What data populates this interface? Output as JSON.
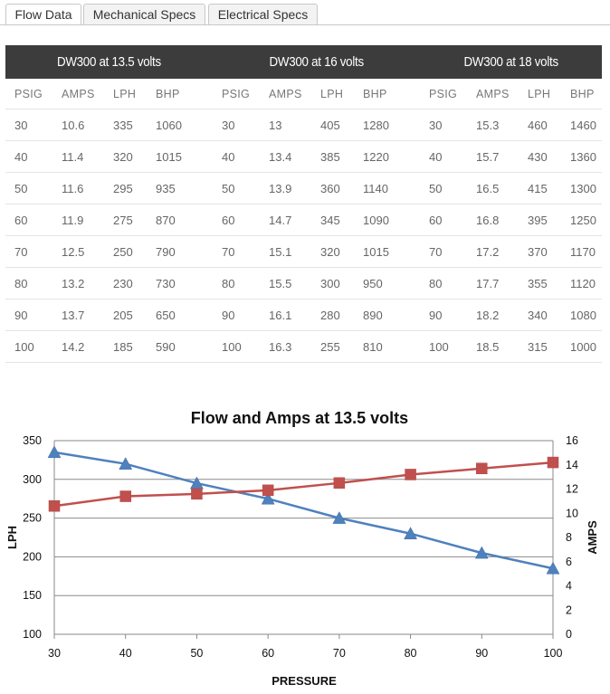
{
  "tabs": [
    {
      "label": "Flow Data",
      "active": true
    },
    {
      "label": "Mechanical Specs",
      "active": false
    },
    {
      "label": "Electrical Specs",
      "active": false
    }
  ],
  "table": {
    "groups": [
      "DW300 at 13.5 volts",
      "DW300 at 16 volts",
      "DW300 at 18 volts"
    ],
    "columns": [
      "PSIG",
      "AMPS",
      "LPH",
      "BHP"
    ],
    "rows": [
      [
        "30",
        "10.6",
        "335",
        "1060",
        "30",
        "13",
        "405",
        "1280",
        "30",
        "15.3",
        "460",
        "1460"
      ],
      [
        "40",
        "11.4",
        "320",
        "1015",
        "40",
        "13.4",
        "385",
        "1220",
        "40",
        "15.7",
        "430",
        "1360"
      ],
      [
        "50",
        "11.6",
        "295",
        "935",
        "50",
        "13.9",
        "360",
        "1140",
        "50",
        "16.5",
        "415",
        "1300"
      ],
      [
        "60",
        "11.9",
        "275",
        "870",
        "60",
        "14.7",
        "345",
        "1090",
        "60",
        "16.8",
        "395",
        "1250"
      ],
      [
        "70",
        "12.5",
        "250",
        "790",
        "70",
        "15.1",
        "320",
        "1015",
        "70",
        "17.2",
        "370",
        "1170"
      ],
      [
        "80",
        "13.2",
        "230",
        "730",
        "80",
        "15.5",
        "300",
        "950",
        "80",
        "17.7",
        "355",
        "1120"
      ],
      [
        "90",
        "13.7",
        "205",
        "650",
        "90",
        "16.1",
        "280",
        "890",
        "90",
        "18.2",
        "340",
        "1080"
      ],
      [
        "100",
        "14.2",
        "185",
        "590",
        "100",
        "16.3",
        "255",
        "810",
        "100",
        "18.5",
        "315",
        "1000"
      ]
    ]
  },
  "chart_data": {
    "type": "line",
    "title": "Flow and Amps at 13.5 volts",
    "xlabel": "PRESSURE",
    "ylabel": "LPH",
    "y2label": "AMPS",
    "x": [
      30,
      40,
      50,
      60,
      70,
      80,
      90,
      100
    ],
    "xlim": [
      30,
      100
    ],
    "ylim": [
      100,
      350
    ],
    "y2lim": [
      0,
      16
    ],
    "yticks": [
      100,
      150,
      200,
      250,
      300,
      350
    ],
    "y2ticks": [
      0,
      2,
      4,
      6,
      8,
      10,
      12,
      14,
      16
    ],
    "grid": true,
    "series": [
      {
        "name": "LPH",
        "axis": "left",
        "marker": "triangle",
        "color": "#4f81bd",
        "values": [
          335,
          320,
          295,
          275,
          250,
          230,
          205,
          185
        ]
      },
      {
        "name": "AMPS",
        "axis": "right",
        "marker": "square",
        "color": "#c0504d",
        "values": [
          10.6,
          11.4,
          11.6,
          11.9,
          12.5,
          13.2,
          13.7,
          14.2
        ]
      }
    ]
  }
}
